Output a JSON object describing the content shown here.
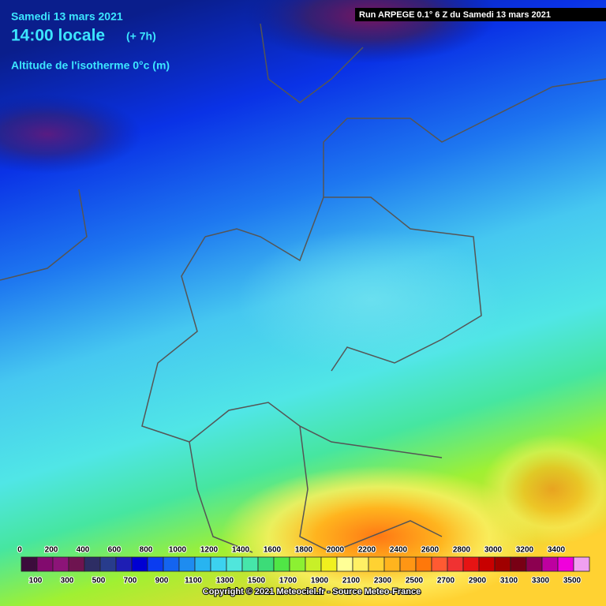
{
  "header": {
    "date": "Samedi 13 mars 2021",
    "time": "14:00 locale",
    "offset": "(+ 7h)",
    "field": "Altitude de l'isotherme 0°c (m)",
    "run": "Run ARPEGE 0.1° 6 Z du Samedi 13 mars 2021"
  },
  "legend": {
    "levels": [
      0,
      100,
      200,
      300,
      400,
      500,
      600,
      700,
      800,
      900,
      1000,
      1100,
      1200,
      1300,
      1400,
      1500,
      1600,
      1700,
      1800,
      1900,
      2000,
      2100,
      2200,
      2300,
      2400,
      2500,
      2600,
      2700,
      2800,
      2900,
      3000,
      3100,
      3200,
      3300,
      3400,
      3500
    ],
    "colors": [
      "#3c0c3c",
      "#820a6e",
      "#8c1478",
      "#6e1450",
      "#2d2d64",
      "#283c8c",
      "#1e1eb4",
      "#0000d2",
      "#0a3cf0",
      "#1464f0",
      "#1e8cf0",
      "#28b4f0",
      "#3cd2f0",
      "#50e6dc",
      "#46e6aa",
      "#3cdc78",
      "#50e646",
      "#8cf032",
      "#c8f028",
      "#f0f01e",
      "#ffff96",
      "#fff064",
      "#ffd232",
      "#ffb41e",
      "#ff9614",
      "#ff780a",
      "#ff5a32",
      "#f03232",
      "#e61414",
      "#c80000",
      "#a00000",
      "#780014",
      "#8c0050",
      "#be00a0",
      "#f000dc",
      "#f0a0f0"
    ]
  },
  "footer": {
    "copyright": "Copyright © 2021 Meteociel.fr - Source Meteo-France"
  }
}
